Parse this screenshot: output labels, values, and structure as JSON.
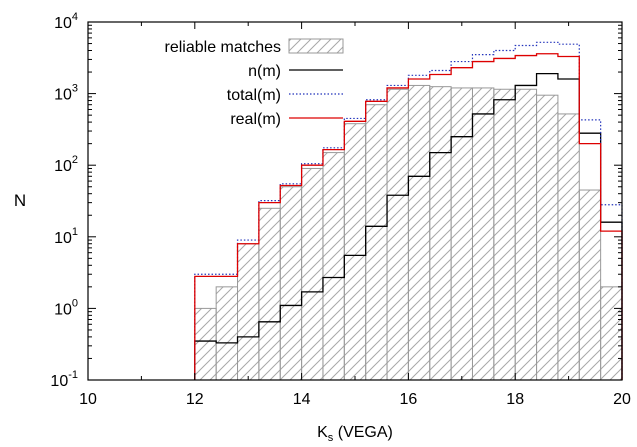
{
  "chart_data": {
    "type": "histogram",
    "scale": {
      "x": "linear",
      "y": "log10"
    },
    "xlim": [
      10,
      20
    ],
    "ylim": [
      0.1,
      10000
    ],
    "xlabel": {
      "main": "K",
      "sub": "s",
      "rest": " (VEGA)"
    },
    "ylabel": "N",
    "x_ticks": [
      {
        "value": 10,
        "label": "10"
      },
      {
        "value": 12,
        "label": "12"
      },
      {
        "value": 14,
        "label": "14"
      },
      {
        "value": 16,
        "label": "16"
      },
      {
        "value": 18,
        "label": "18"
      },
      {
        "value": 20,
        "label": "20"
      }
    ],
    "y_ticks": [
      {
        "value": 0.1,
        "base": "10",
        "exp": "-1"
      },
      {
        "value": 1,
        "base": "10",
        "exp": "0"
      },
      {
        "value": 10,
        "base": "10",
        "exp": "1"
      },
      {
        "value": 100,
        "base": "10",
        "exp": "2"
      },
      {
        "value": 1000,
        "base": "10",
        "exp": "3"
      },
      {
        "value": 10000,
        "base": "10",
        "exp": "4"
      }
    ],
    "bin_edges": [
      12.0,
      12.4,
      12.8,
      13.2,
      13.6,
      14.0,
      14.4,
      14.8,
      15.2,
      15.6,
      16.0,
      16.4,
      16.8,
      17.2,
      17.6,
      18.0,
      18.4,
      18.8,
      19.2,
      19.6,
      20.0
    ],
    "legend_position": "top-left",
    "series": [
      {
        "name": "reliable matches",
        "style": "hatched-bars",
        "color": "#999999",
        "values": [
          1.0,
          2.0,
          8.0,
          25,
          50,
          90,
          150,
          380,
          700,
          1150,
          1300,
          1250,
          1200,
          1200,
          1150,
          1150,
          950,
          520,
          45,
          2.0
        ]
      },
      {
        "name": "n(m)",
        "style": "step",
        "color": "#000000",
        "values": [
          0.35,
          0.33,
          0.4,
          0.65,
          1.1,
          1.7,
          2.7,
          5.5,
          14,
          38,
          70,
          150,
          250,
          520,
          820,
          1300,
          1900,
          1600,
          280,
          16
        ]
      },
      {
        "name": "total(m)",
        "style": "step-dotted",
        "color": "#2233bb",
        "values": [
          3.0,
          3.0,
          9.0,
          32,
          55,
          105,
          175,
          450,
          820,
          1300,
          1800,
          2100,
          2800,
          3500,
          4000,
          4700,
          5200,
          4900,
          430,
          28
        ]
      },
      {
        "name": "real(m)",
        "style": "step",
        "color": "#dd0000",
        "values": [
          2.8,
          2.8,
          8.0,
          30,
          52,
          100,
          165,
          410,
          780,
          1200,
          1600,
          1850,
          2300,
          2800,
          3100,
          3400,
          3600,
          3300,
          200,
          12
        ]
      }
    ]
  }
}
